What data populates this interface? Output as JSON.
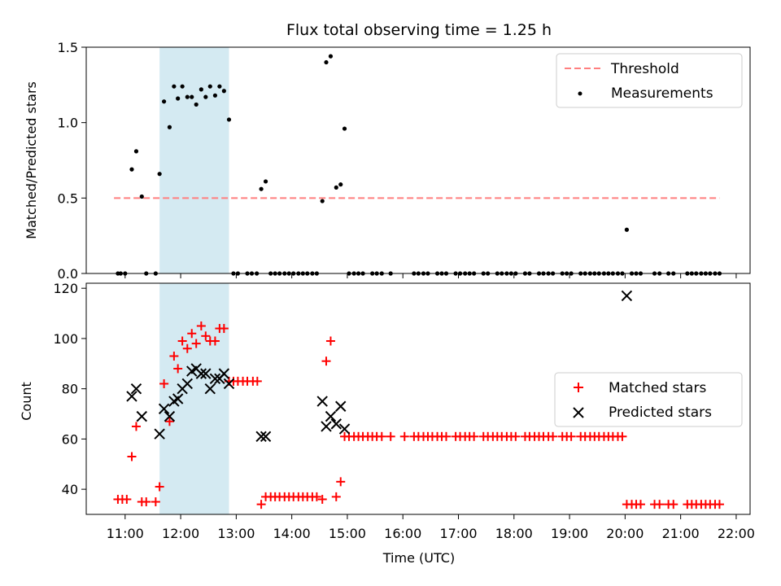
{
  "chart_data": [
    {
      "type": "scatter",
      "title": "Flux total observing time = 1.25 h",
      "xlabel": "",
      "ylabel": "Matched/Predicted stars",
      "ylim": [
        0,
        1.5
      ],
      "yticks": [
        "0.0",
        "0.5",
        "1.0",
        "1.5"
      ],
      "xlim_hours": [
        10.3,
        22.25
      ],
      "highlight_span_hours": [
        11.62,
        12.87
      ],
      "highlight_color": "#d4eaf2",
      "legend_position": "top-right",
      "threshold": {
        "name": "Threshold",
        "y": 0.5,
        "x_range_hours": [
          10.8,
          21.7
        ],
        "color": "#ff7f7f"
      },
      "measurements": {
        "name": "Measurements",
        "color": "#000000",
        "points": [
          [
            10.87,
            0
          ],
          [
            10.92,
            0
          ],
          [
            11.0,
            0
          ],
          [
            11.12,
            0.69
          ],
          [
            11.2,
            0.81
          ],
          [
            11.3,
            0.51
          ],
          [
            11.38,
            0
          ],
          [
            11.55,
            0
          ],
          [
            11.62,
            0.66
          ],
          [
            11.7,
            1.14
          ],
          [
            11.8,
            0.97
          ],
          [
            11.88,
            1.24
          ],
          [
            11.95,
            1.16
          ],
          [
            12.03,
            1.24
          ],
          [
            12.12,
            1.17
          ],
          [
            12.2,
            1.17
          ],
          [
            12.28,
            1.12
          ],
          [
            12.37,
            1.22
          ],
          [
            12.45,
            1.17
          ],
          [
            12.53,
            1.24
          ],
          [
            12.62,
            1.18
          ],
          [
            12.7,
            1.24
          ],
          [
            12.78,
            1.21
          ],
          [
            12.87,
            1.02
          ],
          [
            12.95,
            0
          ],
          [
            13.03,
            0
          ],
          [
            13.2,
            0
          ],
          [
            13.28,
            0
          ],
          [
            13.37,
            0
          ],
          [
            13.45,
            0.56
          ],
          [
            13.53,
            0.61
          ],
          [
            13.62,
            0
          ],
          [
            13.7,
            0
          ],
          [
            13.78,
            0
          ],
          [
            13.87,
            0
          ],
          [
            13.95,
            0
          ],
          [
            14.03,
            0
          ],
          [
            14.12,
            0
          ],
          [
            14.2,
            0
          ],
          [
            14.28,
            0
          ],
          [
            14.37,
            0
          ],
          [
            14.45,
            0
          ],
          [
            14.55,
            0.48
          ],
          [
            14.62,
            1.4
          ],
          [
            14.7,
            1.44
          ],
          [
            14.8,
            0.57
          ],
          [
            14.88,
            0.59
          ],
          [
            14.95,
            0.96
          ],
          [
            15.03,
            0
          ],
          [
            15.12,
            0
          ],
          [
            15.2,
            0
          ],
          [
            15.28,
            0
          ],
          [
            15.45,
            0
          ],
          [
            15.53,
            0
          ],
          [
            15.62,
            0
          ],
          [
            15.78,
            0
          ],
          [
            16.2,
            0
          ],
          [
            16.28,
            0
          ],
          [
            16.37,
            0
          ],
          [
            16.45,
            0
          ],
          [
            16.62,
            0
          ],
          [
            16.7,
            0
          ],
          [
            16.78,
            0
          ],
          [
            16.95,
            0
          ],
          [
            17.03,
            0
          ],
          [
            17.12,
            0
          ],
          [
            17.2,
            0
          ],
          [
            17.28,
            0
          ],
          [
            17.45,
            0
          ],
          [
            17.53,
            0
          ],
          [
            17.7,
            0
          ],
          [
            17.78,
            0
          ],
          [
            17.87,
            0
          ],
          [
            17.95,
            0
          ],
          [
            18.03,
            0
          ],
          [
            18.2,
            0
          ],
          [
            18.28,
            0
          ],
          [
            18.45,
            0
          ],
          [
            18.53,
            0
          ],
          [
            18.62,
            0
          ],
          [
            18.7,
            0
          ],
          [
            18.87,
            0
          ],
          [
            18.95,
            0
          ],
          [
            19.03,
            0
          ],
          [
            19.2,
            0
          ],
          [
            19.28,
            0
          ],
          [
            19.37,
            0
          ],
          [
            19.45,
            0
          ],
          [
            19.53,
            0
          ],
          [
            19.62,
            0
          ],
          [
            19.7,
            0
          ],
          [
            19.78,
            0
          ],
          [
            19.87,
            0
          ],
          [
            19.95,
            0
          ],
          [
            20.03,
            0.29
          ],
          [
            20.12,
            0
          ],
          [
            20.2,
            0
          ],
          [
            20.28,
            0
          ],
          [
            20.53,
            0
          ],
          [
            20.62,
            0
          ],
          [
            20.78,
            0
          ],
          [
            20.87,
            0
          ],
          [
            21.12,
            0
          ],
          [
            21.2,
            0
          ],
          [
            21.28,
            0
          ],
          [
            21.37,
            0
          ],
          [
            21.45,
            0
          ],
          [
            21.53,
            0
          ],
          [
            21.62,
            0
          ],
          [
            21.7,
            0
          ]
        ]
      }
    },
    {
      "type": "scatter",
      "title": "",
      "xlabel": "Time (UTC)",
      "ylabel": "Count",
      "ylim": [
        30,
        122
      ],
      "yticks": [
        "40",
        "60",
        "80",
        "100",
        "120"
      ],
      "xticks": [
        "11:00",
        "12:00",
        "13:00",
        "14:00",
        "15:00",
        "16:00",
        "17:00",
        "18:00",
        "19:00",
        "20:00",
        "21:00",
        "22:00"
      ],
      "xlim_hours": [
        10.3,
        22.25
      ],
      "highlight_span_hours": [
        11.62,
        12.87
      ],
      "legend_position": "center-right",
      "series": [
        {
          "name": "Matched stars",
          "marker": "plus",
          "color": "#ff0000",
          "points": [
            [
              10.87,
              36
            ],
            [
              10.95,
              36
            ],
            [
              11.03,
              36
            ],
            [
              11.12,
              53
            ],
            [
              11.2,
              65
            ],
            [
              11.3,
              35
            ],
            [
              11.38,
              35
            ],
            [
              11.55,
              35
            ],
            [
              11.62,
              41
            ],
            [
              11.7,
              82
            ],
            [
              11.8,
              67
            ],
            [
              11.88,
              93
            ],
            [
              11.95,
              88
            ],
            [
              12.03,
              99
            ],
            [
              12.12,
              96
            ],
            [
              12.2,
              102
            ],
            [
              12.28,
              98
            ],
            [
              12.37,
              105
            ],
            [
              12.45,
              101
            ],
            [
              12.53,
              99
            ],
            [
              12.62,
              99
            ],
            [
              12.7,
              104
            ],
            [
              12.78,
              104
            ],
            [
              12.87,
              83
            ],
            [
              12.95,
              83
            ],
            [
              13.03,
              83
            ],
            [
              13.12,
              83
            ],
            [
              13.2,
              83
            ],
            [
              13.3,
              83
            ],
            [
              13.38,
              83
            ],
            [
              13.45,
              34
            ],
            [
              13.53,
              37
            ],
            [
              13.62,
              37
            ],
            [
              13.7,
              37
            ],
            [
              13.78,
              37
            ],
            [
              13.87,
              37
            ],
            [
              13.95,
              37
            ],
            [
              14.03,
              37
            ],
            [
              14.12,
              37
            ],
            [
              14.2,
              37
            ],
            [
              14.28,
              37
            ],
            [
              14.37,
              37
            ],
            [
              14.45,
              37
            ],
            [
              14.55,
              36
            ],
            [
              14.62,
              91
            ],
            [
              14.7,
              99
            ],
            [
              14.8,
              37
            ],
            [
              14.88,
              43
            ],
            [
              14.95,
              61
            ],
            [
              15.03,
              61
            ],
            [
              15.12,
              61
            ],
            [
              15.2,
              61
            ],
            [
              15.28,
              61
            ],
            [
              15.37,
              61
            ],
            [
              15.45,
              61
            ],
            [
              15.53,
              61
            ],
            [
              15.62,
              61
            ],
            [
              15.78,
              61
            ],
            [
              16.03,
              61
            ],
            [
              16.2,
              61
            ],
            [
              16.28,
              61
            ],
            [
              16.37,
              61
            ],
            [
              16.45,
              61
            ],
            [
              16.53,
              61
            ],
            [
              16.62,
              61
            ],
            [
              16.7,
              61
            ],
            [
              16.78,
              61
            ],
            [
              16.95,
              61
            ],
            [
              17.03,
              61
            ],
            [
              17.12,
              61
            ],
            [
              17.2,
              61
            ],
            [
              17.28,
              61
            ],
            [
              17.45,
              61
            ],
            [
              17.53,
              61
            ],
            [
              17.62,
              61
            ],
            [
              17.7,
              61
            ],
            [
              17.78,
              61
            ],
            [
              17.87,
              61
            ],
            [
              17.95,
              61
            ],
            [
              18.03,
              61
            ],
            [
              18.2,
              61
            ],
            [
              18.28,
              61
            ],
            [
              18.37,
              61
            ],
            [
              18.45,
              61
            ],
            [
              18.53,
              61
            ],
            [
              18.62,
              61
            ],
            [
              18.7,
              61
            ],
            [
              18.87,
              61
            ],
            [
              18.95,
              61
            ],
            [
              19.03,
              61
            ],
            [
              19.2,
              61
            ],
            [
              19.28,
              61
            ],
            [
              19.37,
              61
            ],
            [
              19.45,
              61
            ],
            [
              19.53,
              61
            ],
            [
              19.62,
              61
            ],
            [
              19.7,
              61
            ],
            [
              19.78,
              61
            ],
            [
              19.87,
              61
            ],
            [
              19.95,
              61
            ],
            [
              20.03,
              34
            ],
            [
              20.12,
              34
            ],
            [
              20.2,
              34
            ],
            [
              20.28,
              34
            ],
            [
              20.53,
              34
            ],
            [
              20.62,
              34
            ],
            [
              20.78,
              34
            ],
            [
              20.87,
              34
            ],
            [
              21.12,
              34
            ],
            [
              21.2,
              34
            ],
            [
              21.28,
              34
            ],
            [
              21.37,
              34
            ],
            [
              21.45,
              34
            ],
            [
              21.53,
              34
            ],
            [
              21.62,
              34
            ],
            [
              21.7,
              34
            ]
          ]
        },
        {
          "name": "Predicted stars",
          "marker": "x",
          "color": "#000000",
          "points": [
            [
              11.12,
              77
            ],
            [
              11.2,
              80
            ],
            [
              11.3,
              69
            ],
            [
              11.62,
              62
            ],
            [
              11.7,
              72
            ],
            [
              11.8,
              69
            ],
            [
              11.88,
              75
            ],
            [
              11.95,
              76
            ],
            [
              12.03,
              80
            ],
            [
              12.12,
              82
            ],
            [
              12.2,
              87
            ],
            [
              12.28,
              88
            ],
            [
              12.37,
              86
            ],
            [
              12.45,
              86
            ],
            [
              12.53,
              80
            ],
            [
              12.62,
              84
            ],
            [
              12.7,
              84
            ],
            [
              12.78,
              86
            ],
            [
              12.87,
              82
            ],
            [
              13.45,
              61
            ],
            [
              13.53,
              61
            ],
            [
              14.55,
              75
            ],
            [
              14.62,
              65
            ],
            [
              14.7,
              69
            ],
            [
              14.8,
              66
            ],
            [
              14.88,
              73
            ],
            [
              14.95,
              64
            ],
            [
              20.03,
              117
            ]
          ]
        }
      ]
    }
  ]
}
